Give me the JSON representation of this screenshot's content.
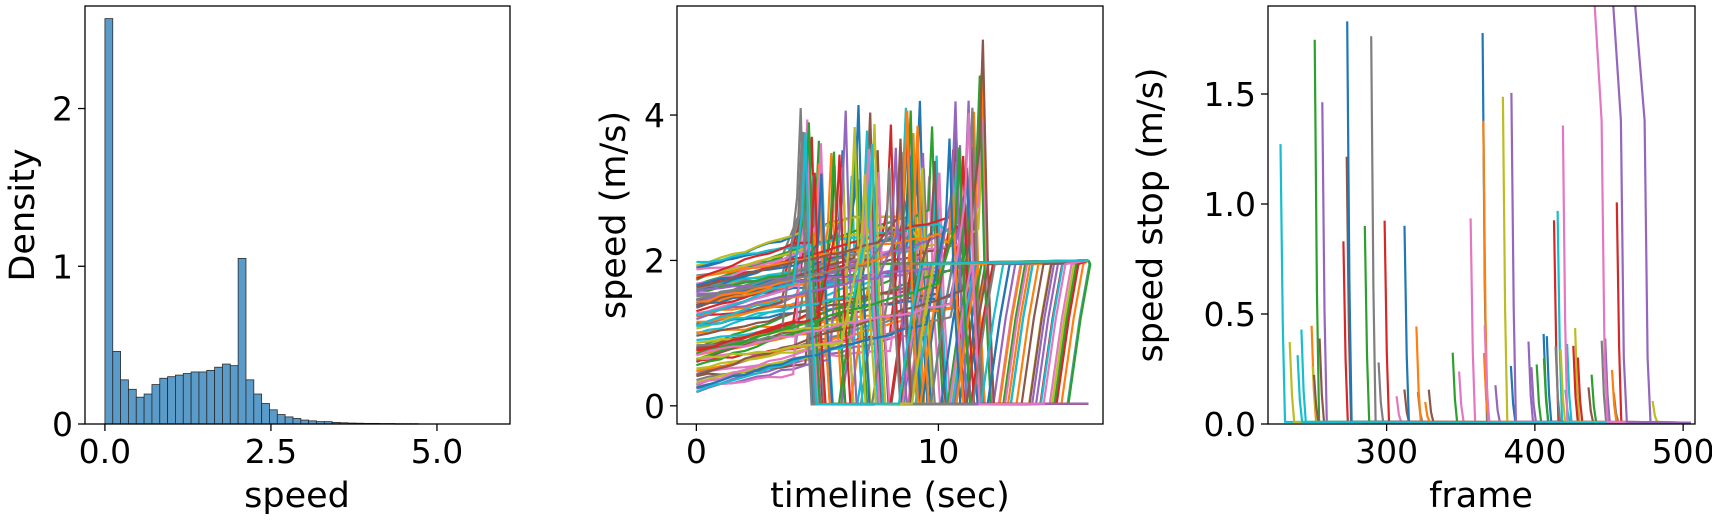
{
  "palette": [
    "#1f77b4",
    "#ff7f0e",
    "#2ca02c",
    "#d62728",
    "#9467bd",
    "#8c564b",
    "#e377c2",
    "#7f7f7f",
    "#bcbd22",
    "#17becf"
  ],
  "chart_data": [
    {
      "type": "bar",
      "xlabel": "speed",
      "ylabel": "Density",
      "xlim": [
        -0.3,
        6.1
      ],
      "ylim": [
        0,
        2.65
      ],
      "xticks": [
        {
          "v": 0.0,
          "label": "0.0"
        },
        {
          "v": 2.5,
          "label": "2.5"
        },
        {
          "v": 5.0,
          "label": "5.0"
        }
      ],
      "yticks": [
        {
          "v": 0,
          "label": "0"
        },
        {
          "v": 1,
          "label": "1"
        },
        {
          "v": 2,
          "label": "2"
        }
      ],
      "bar_color": "#5a9bc9",
      "bin_width": 0.118,
      "bin_start": 0.0,
      "values": [
        2.57,
        0.46,
        0.28,
        0.22,
        0.17,
        0.19,
        0.25,
        0.29,
        0.3,
        0.31,
        0.32,
        0.33,
        0.33,
        0.34,
        0.36,
        0.38,
        0.37,
        1.05,
        0.28,
        0.19,
        0.13,
        0.09,
        0.06,
        0.045,
        0.035,
        0.025,
        0.02,
        0.015,
        0.015,
        0.01,
        0.008,
        0.006,
        0.005,
        0.004,
        0.004,
        0.003,
        0.003,
        0.002,
        0.002,
        0.002
      ]
    },
    {
      "type": "line",
      "xlabel": "timeline (sec)",
      "ylabel": "speed (m/s)",
      "xlim": [
        -0.8,
        16.8
      ],
      "ylim": [
        -0.25,
        5.5
      ],
      "xticks": [
        {
          "v": 0,
          "label": "0"
        },
        {
          "v": 10,
          "label": "10"
        }
      ],
      "yticks": [
        {
          "v": 0,
          "label": "0"
        },
        {
          "v": 2,
          "label": "2"
        },
        {
          "v": 4,
          "label": "4"
        }
      ],
      "n_series": 90
    },
    {
      "type": "line",
      "xlabel": "frame",
      "ylabel": "speed stop (m/s)",
      "xlim": [
        220,
        508
      ],
      "ylim": [
        0,
        1.9
      ],
      "xticks": [
        {
          "v": 300,
          "label": "300"
        },
        {
          "v": 400,
          "label": "400"
        },
        {
          "v": 500,
          "label": "500"
        }
      ],
      "yticks": [
        {
          "v": 0.0,
          "label": "0.0"
        },
        {
          "v": 0.5,
          "label": "0.5"
        },
        {
          "v": 1.0,
          "label": "1.0"
        },
        {
          "v": 1.5,
          "label": "1.5"
        }
      ],
      "n_series": 60
    }
  ]
}
